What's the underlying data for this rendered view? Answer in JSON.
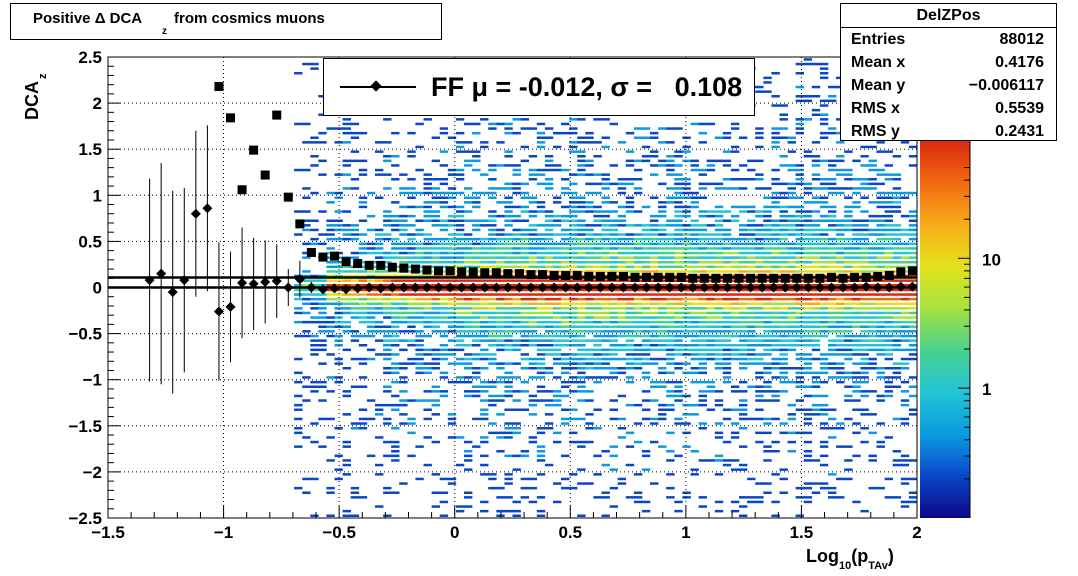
{
  "title": {
    "main": "Positive Δ DCA",
    "sub": "z",
    "tail": " from cosmics muons"
  },
  "stats": {
    "name": "DelZPos",
    "rows": [
      {
        "key": "Entries",
        "value": "88012"
      },
      {
        "key": "Mean x",
        "value": "0.4176"
      },
      {
        "key": "Mean y",
        "value": "−0.006117"
      },
      {
        "key": "RMS x",
        "value": "0.5539"
      },
      {
        "key": "RMS y",
        "value": "0.2431"
      }
    ]
  },
  "legend": {
    "text": "FF μ = -0.012, σ =   0.108"
  },
  "axes": {
    "ylabel_main": "DCA",
    "ylabel_sub": "z",
    "xlabel_pre": "Log",
    "xlabel_sub10": "10",
    "xlabel_mid": "(p",
    "xlabel_sub_tav": "TAv",
    "xlabel_post": ")"
  },
  "colors": {
    "frame": "#000000",
    "grid": "#000000",
    "markers": "#000000"
  },
  "chart_data": {
    "type": "heatmap",
    "xlim": [
      -1.5,
      2.0
    ],
    "ylim": [
      -2.5,
      2.5
    ],
    "x_ticks": [
      -1.5,
      -1,
      -0.5,
      0,
      0.5,
      1,
      1.5,
      2
    ],
    "x_tick_labels": [
      "−1.5",
      "−1",
      "−0.5",
      "0",
      "0.5",
      "1",
      "1.5",
      "2"
    ],
    "y_ticks": [
      -2.5,
      -2,
      -1.5,
      -1,
      -0.5,
      0,
      0.5,
      1,
      1.5,
      2,
      2.5
    ],
    "y_tick_labels": [
      "−2.5",
      "−2",
      "−1.5",
      "−1",
      "−0.5",
      "0",
      "0.5",
      "1",
      "1.5",
      "2",
      "2.5"
    ],
    "grid": true,
    "colorbar": {
      "scale": "log",
      "tick_values": [
        1,
        10
      ],
      "tick_labels": [
        "1",
        "10"
      ],
      "colors": [
        "#0d0887",
        "#0a47c7",
        "#0a9ae0",
        "#23c4d4",
        "#47d18f",
        "#a6e23f",
        "#e5e21b",
        "#f7ad19",
        "#f26a12",
        "#d92a10"
      ]
    },
    "mean_series": {
      "name": "mean",
      "marker": "diamond",
      "points": [
        [
          -1.32,
          0.08,
          1.1
        ],
        [
          -1.27,
          0.15,
          1.2
        ],
        [
          -1.22,
          -0.05,
          1.1
        ],
        [
          -1.17,
          0.08,
          1.0
        ],
        [
          -1.12,
          0.8,
          0.9
        ],
        [
          -1.07,
          0.86,
          0.9
        ],
        [
          -1.02,
          -0.26,
          0.75
        ],
        [
          -0.97,
          -0.21,
          0.6
        ],
        [
          -0.92,
          0.05,
          0.6
        ],
        [
          -0.87,
          0.04,
          0.5
        ],
        [
          -0.82,
          0.06,
          0.45
        ],
        [
          -0.77,
          0.07,
          0.4
        ],
        [
          -0.72,
          0.0,
          0.2
        ],
        [
          -0.67,
          0.09,
          0.2
        ],
        [
          -0.62,
          0.0,
          0.06
        ],
        [
          -0.57,
          -0.02,
          0.04
        ],
        [
          -0.52,
          -0.01,
          0.03
        ],
        [
          -0.47,
          -0.02,
          0.02
        ],
        [
          -0.42,
          -0.01,
          0.02
        ],
        [
          -0.37,
          0.0,
          0.01
        ],
        [
          -0.32,
          -0.01,
          0.01
        ],
        [
          -0.27,
          0.0,
          0.01
        ],
        [
          -0.22,
          0.0,
          0.01
        ],
        [
          -0.17,
          0.0,
          0.01
        ],
        [
          -0.12,
          0.0,
          0.01
        ],
        [
          -0.07,
          0.0,
          0.01
        ],
        [
          -0.02,
          0.0,
          0.01
        ],
        [
          0.03,
          0.0,
          0.01
        ],
        [
          0.08,
          0.0,
          0.01
        ],
        [
          0.13,
          0.0,
          0.01
        ],
        [
          0.18,
          0.0,
          0.01
        ],
        [
          0.23,
          0.0,
          0.01
        ],
        [
          0.28,
          0.0,
          0.01
        ],
        [
          0.33,
          0.0,
          0.01
        ],
        [
          0.38,
          0.0,
          0.01
        ],
        [
          0.43,
          0.0,
          0.01
        ],
        [
          0.48,
          0.0,
          0.01
        ],
        [
          0.53,
          0.0,
          0.01
        ],
        [
          0.58,
          0.0,
          0.01
        ],
        [
          0.63,
          0.0,
          0.01
        ],
        [
          0.68,
          0.0,
          0.01
        ],
        [
          0.73,
          0.0,
          0.01
        ],
        [
          0.78,
          0.0,
          0.01
        ],
        [
          0.83,
          0.0,
          0.01
        ],
        [
          0.88,
          0.0,
          0.01
        ],
        [
          0.93,
          0.0,
          0.01
        ],
        [
          0.98,
          0.0,
          0.01
        ],
        [
          1.03,
          0.0,
          0.01
        ],
        [
          1.08,
          0.0,
          0.01
        ],
        [
          1.13,
          0.0,
          0.01
        ],
        [
          1.18,
          0.0,
          0.01
        ],
        [
          1.23,
          0.0,
          0.01
        ],
        [
          1.28,
          0.0,
          0.01
        ],
        [
          1.33,
          0.0,
          0.01
        ],
        [
          1.38,
          0.0,
          0.01
        ],
        [
          1.43,
          0.0,
          0.01
        ],
        [
          1.48,
          0.0,
          0.01
        ],
        [
          1.53,
          0.0,
          0.01
        ],
        [
          1.58,
          0.0,
          0.01
        ],
        [
          1.63,
          0.0,
          0.01
        ],
        [
          1.68,
          0.0,
          0.01
        ],
        [
          1.73,
          0.0,
          0.02
        ],
        [
          1.78,
          0.01,
          0.02
        ],
        [
          1.83,
          0.0,
          0.02
        ],
        [
          1.88,
          0.0,
          0.02
        ],
        [
          1.93,
          0.01,
          0.02
        ],
        [
          1.98,
          0.01,
          0.02
        ]
      ]
    },
    "rms_series": {
      "name": "rms",
      "marker": "square",
      "points": [
        [
          -1.02,
          2.18
        ],
        [
          -0.97,
          1.84
        ],
        [
          -0.92,
          1.06
        ],
        [
          -0.87,
          1.49
        ],
        [
          -0.82,
          1.22
        ],
        [
          -0.77,
          1.87
        ],
        [
          -0.72,
          0.98
        ],
        [
          -0.67,
          0.69
        ],
        [
          -0.62,
          0.38
        ],
        [
          -0.57,
          0.33
        ],
        [
          -0.52,
          0.34
        ],
        [
          -0.47,
          0.28
        ],
        [
          -0.42,
          0.26
        ],
        [
          -0.37,
          0.24
        ],
        [
          -0.32,
          0.24
        ],
        [
          -0.27,
          0.22
        ],
        [
          -0.22,
          0.21
        ],
        [
          -0.17,
          0.2
        ],
        [
          -0.12,
          0.19
        ],
        [
          -0.07,
          0.18
        ],
        [
          -0.02,
          0.18
        ],
        [
          0.03,
          0.17
        ],
        [
          0.08,
          0.17
        ],
        [
          0.13,
          0.16
        ],
        [
          0.18,
          0.16
        ],
        [
          0.23,
          0.15
        ],
        [
          0.28,
          0.15
        ],
        [
          0.33,
          0.14
        ],
        [
          0.38,
          0.14
        ],
        [
          0.43,
          0.13
        ],
        [
          0.48,
          0.13
        ],
        [
          0.53,
          0.13
        ],
        [
          0.58,
          0.12
        ],
        [
          0.63,
          0.12
        ],
        [
          0.68,
          0.12
        ],
        [
          0.73,
          0.12
        ],
        [
          0.78,
          0.11
        ],
        [
          0.83,
          0.11
        ],
        [
          0.88,
          0.11
        ],
        [
          0.93,
          0.11
        ],
        [
          0.98,
          0.11
        ],
        [
          1.03,
          0.1
        ],
        [
          1.08,
          0.1
        ],
        [
          1.13,
          0.1
        ],
        [
          1.18,
          0.1
        ],
        [
          1.23,
          0.1
        ],
        [
          1.28,
          0.1
        ],
        [
          1.33,
          0.1
        ],
        [
          1.38,
          0.1
        ],
        [
          1.43,
          0.1
        ],
        [
          1.48,
          0.1
        ],
        [
          1.53,
          0.1
        ],
        [
          1.58,
          0.1
        ],
        [
          1.63,
          0.11
        ],
        [
          1.68,
          0.1
        ],
        [
          1.73,
          0.11
        ],
        [
          1.78,
          0.11
        ],
        [
          1.83,
          0.12
        ],
        [
          1.88,
          0.13
        ],
        [
          1.93,
          0.17
        ],
        [
          1.98,
          0.18
        ]
      ]
    },
    "reference_lines": [
      {
        "y": 0.0
      },
      {
        "y": 0.108
      }
    ],
    "density": {
      "peak_y": 0.0,
      "center_width": 0.08,
      "outer_width": 0.35,
      "spread_min_x": -0.7,
      "dense_min_x": -0.55
    }
  }
}
